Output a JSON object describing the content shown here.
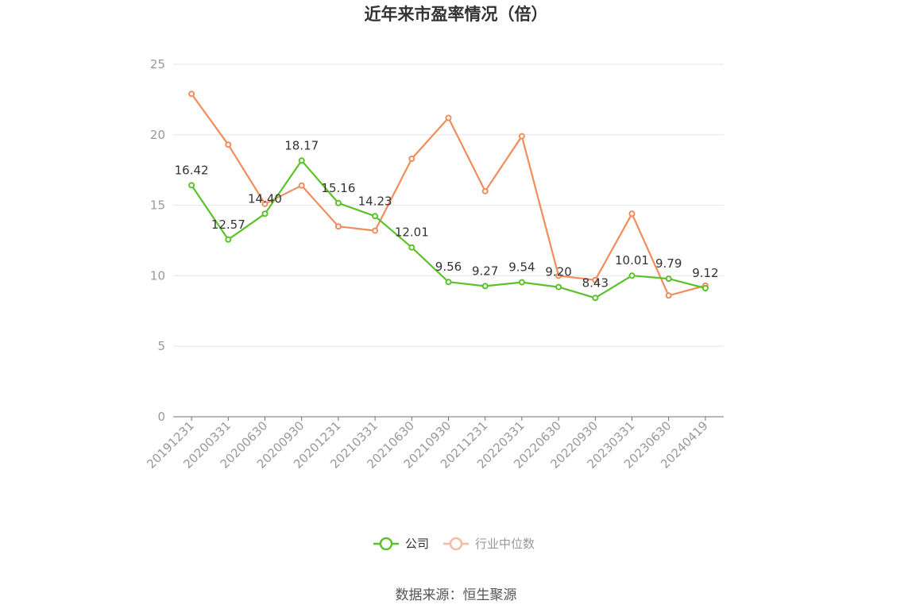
{
  "chart_data": {
    "type": "line",
    "title": "近年来市盈率情况（倍）",
    "x": [
      "20191231",
      "20200331",
      "20200630",
      "20200930",
      "20201231",
      "20210331",
      "20210630",
      "20210930",
      "20211231",
      "20220331",
      "20220630",
      "20220930",
      "20230331",
      "20230630",
      "20240419"
    ],
    "ylim": [
      0,
      25
    ],
    "yticks": [
      0,
      5,
      10,
      15,
      20,
      25
    ],
    "grid": true,
    "legend_position": "bottom-center",
    "series": [
      {
        "name": "公司",
        "color": "#5cc22a",
        "values": [
          16.42,
          12.57,
          14.4,
          18.17,
          15.16,
          14.23,
          12.01,
          9.56,
          9.27,
          9.54,
          9.2,
          8.43,
          10.01,
          9.79,
          9.12
        ],
        "labels": [
          "16.42",
          "12.57",
          "14.40",
          "18.17",
          "15.16",
          "14.23",
          "12.01",
          "9.56",
          "9.27",
          "9.54",
          "9.20",
          "8.43",
          "10.01",
          "9.79",
          "9.12"
        ]
      },
      {
        "name": "行业中位数",
        "color": "#f28c5b",
        "values": [
          22.9,
          19.3,
          15.1,
          16.4,
          13.5,
          13.2,
          18.3,
          21.2,
          16.0,
          19.9,
          10.0,
          9.7,
          14.4,
          8.6,
          9.3
        ]
      }
    ]
  },
  "source_text": "数据来源：恒生聚源"
}
